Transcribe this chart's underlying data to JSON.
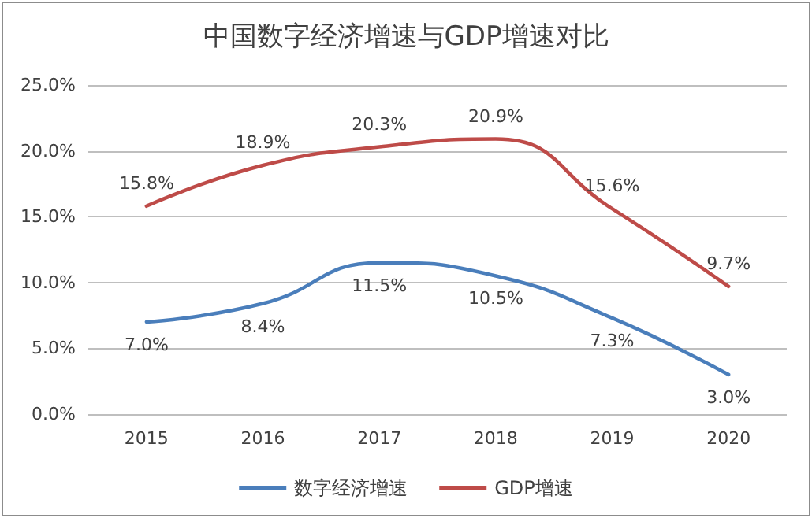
{
  "chart_data": {
    "type": "line",
    "title": "中国数字经济增速与GDP增速对比",
    "categories": [
      "2015",
      "2016",
      "2017",
      "2018",
      "2019",
      "2020"
    ],
    "series": [
      {
        "name": "数字经济增速",
        "color": "#4a7ebb",
        "values": [
          7.0,
          8.4,
          11.5,
          10.5,
          7.3,
          3.0
        ],
        "value_labels": [
          "7.0%",
          "8.4%",
          "11.5%",
          "10.5%",
          "7.3%",
          "3.0%"
        ]
      },
      {
        "name": "GDP增速",
        "color": "#be4b48",
        "values": [
          15.8,
          18.9,
          20.3,
          20.9,
          15.6,
          9.7
        ],
        "value_labels": [
          "15.8%",
          "18.9%",
          "20.3%",
          "20.9%",
          "15.6%",
          "9.7%"
        ]
      }
    ],
    "ylim": [
      0,
      25
    ],
    "yticks": [
      {
        "value": 0,
        "label": "0.0%"
      },
      {
        "value": 5,
        "label": "5.0%"
      },
      {
        "value": 10,
        "label": "10.0%"
      },
      {
        "value": 15,
        "label": "15.0%"
      },
      {
        "value": 20,
        "label": "20.0%"
      },
      {
        "value": 25,
        "label": "25.0%"
      }
    ],
    "grid": "y",
    "legend": "bottom",
    "marker": "none",
    "line_style": "solid"
  }
}
